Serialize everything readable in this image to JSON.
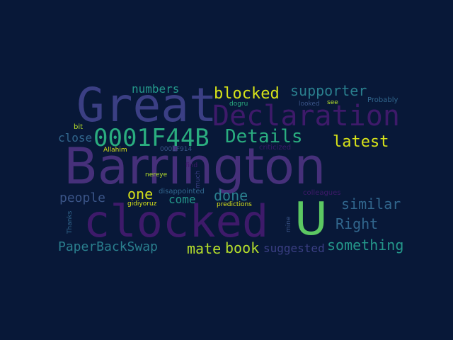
{
  "palette": {
    "background": "#081838",
    "purple_dark": "#3e1a6a",
    "purple": "#46307a",
    "indigo": "#3b3f84",
    "slate_blue": "#3a5487",
    "steel": "#31668d",
    "teal": "#2a7f8e",
    "sea": "#24978a",
    "green_teal": "#2aad7f",
    "green": "#5cc862",
    "lime": "#b5de2b",
    "yellow": "#d7e219"
  },
  "words": {
    "barrington": "Barrington",
    "great": "Great",
    "clocked": "clocked",
    "declaration": "Declaration",
    "u": "U",
    "hex_large": "0001F44B",
    "details": "Details",
    "blocked": "blocked",
    "supporter": "supporter",
    "latest": "latest",
    "numbers": "numbers",
    "people": "people",
    "one": "one",
    "come": "come",
    "done": "done",
    "similar": "similar",
    "right": "Right",
    "paperbackswap": "PaperBackSwap",
    "mate": "mate",
    "book": "book",
    "suggested": "suggested",
    "something": "something",
    "close": "close",
    "bit": "bit",
    "allahim": "Allahim",
    "hex_small": "0001F914",
    "criticized": "criticized",
    "find": "find",
    "much": "much",
    "nereye": "nereye",
    "disappointed": "disappointed",
    "gidiyoruz": "gidiyoruz",
    "predictions": "predictions",
    "colleagues": "colleagues",
    "thanks": "Thanks",
    "mine": "mine",
    "dogru": "dogru",
    "looked": "looked",
    "see": "see",
    "probably": "Probably"
  }
}
